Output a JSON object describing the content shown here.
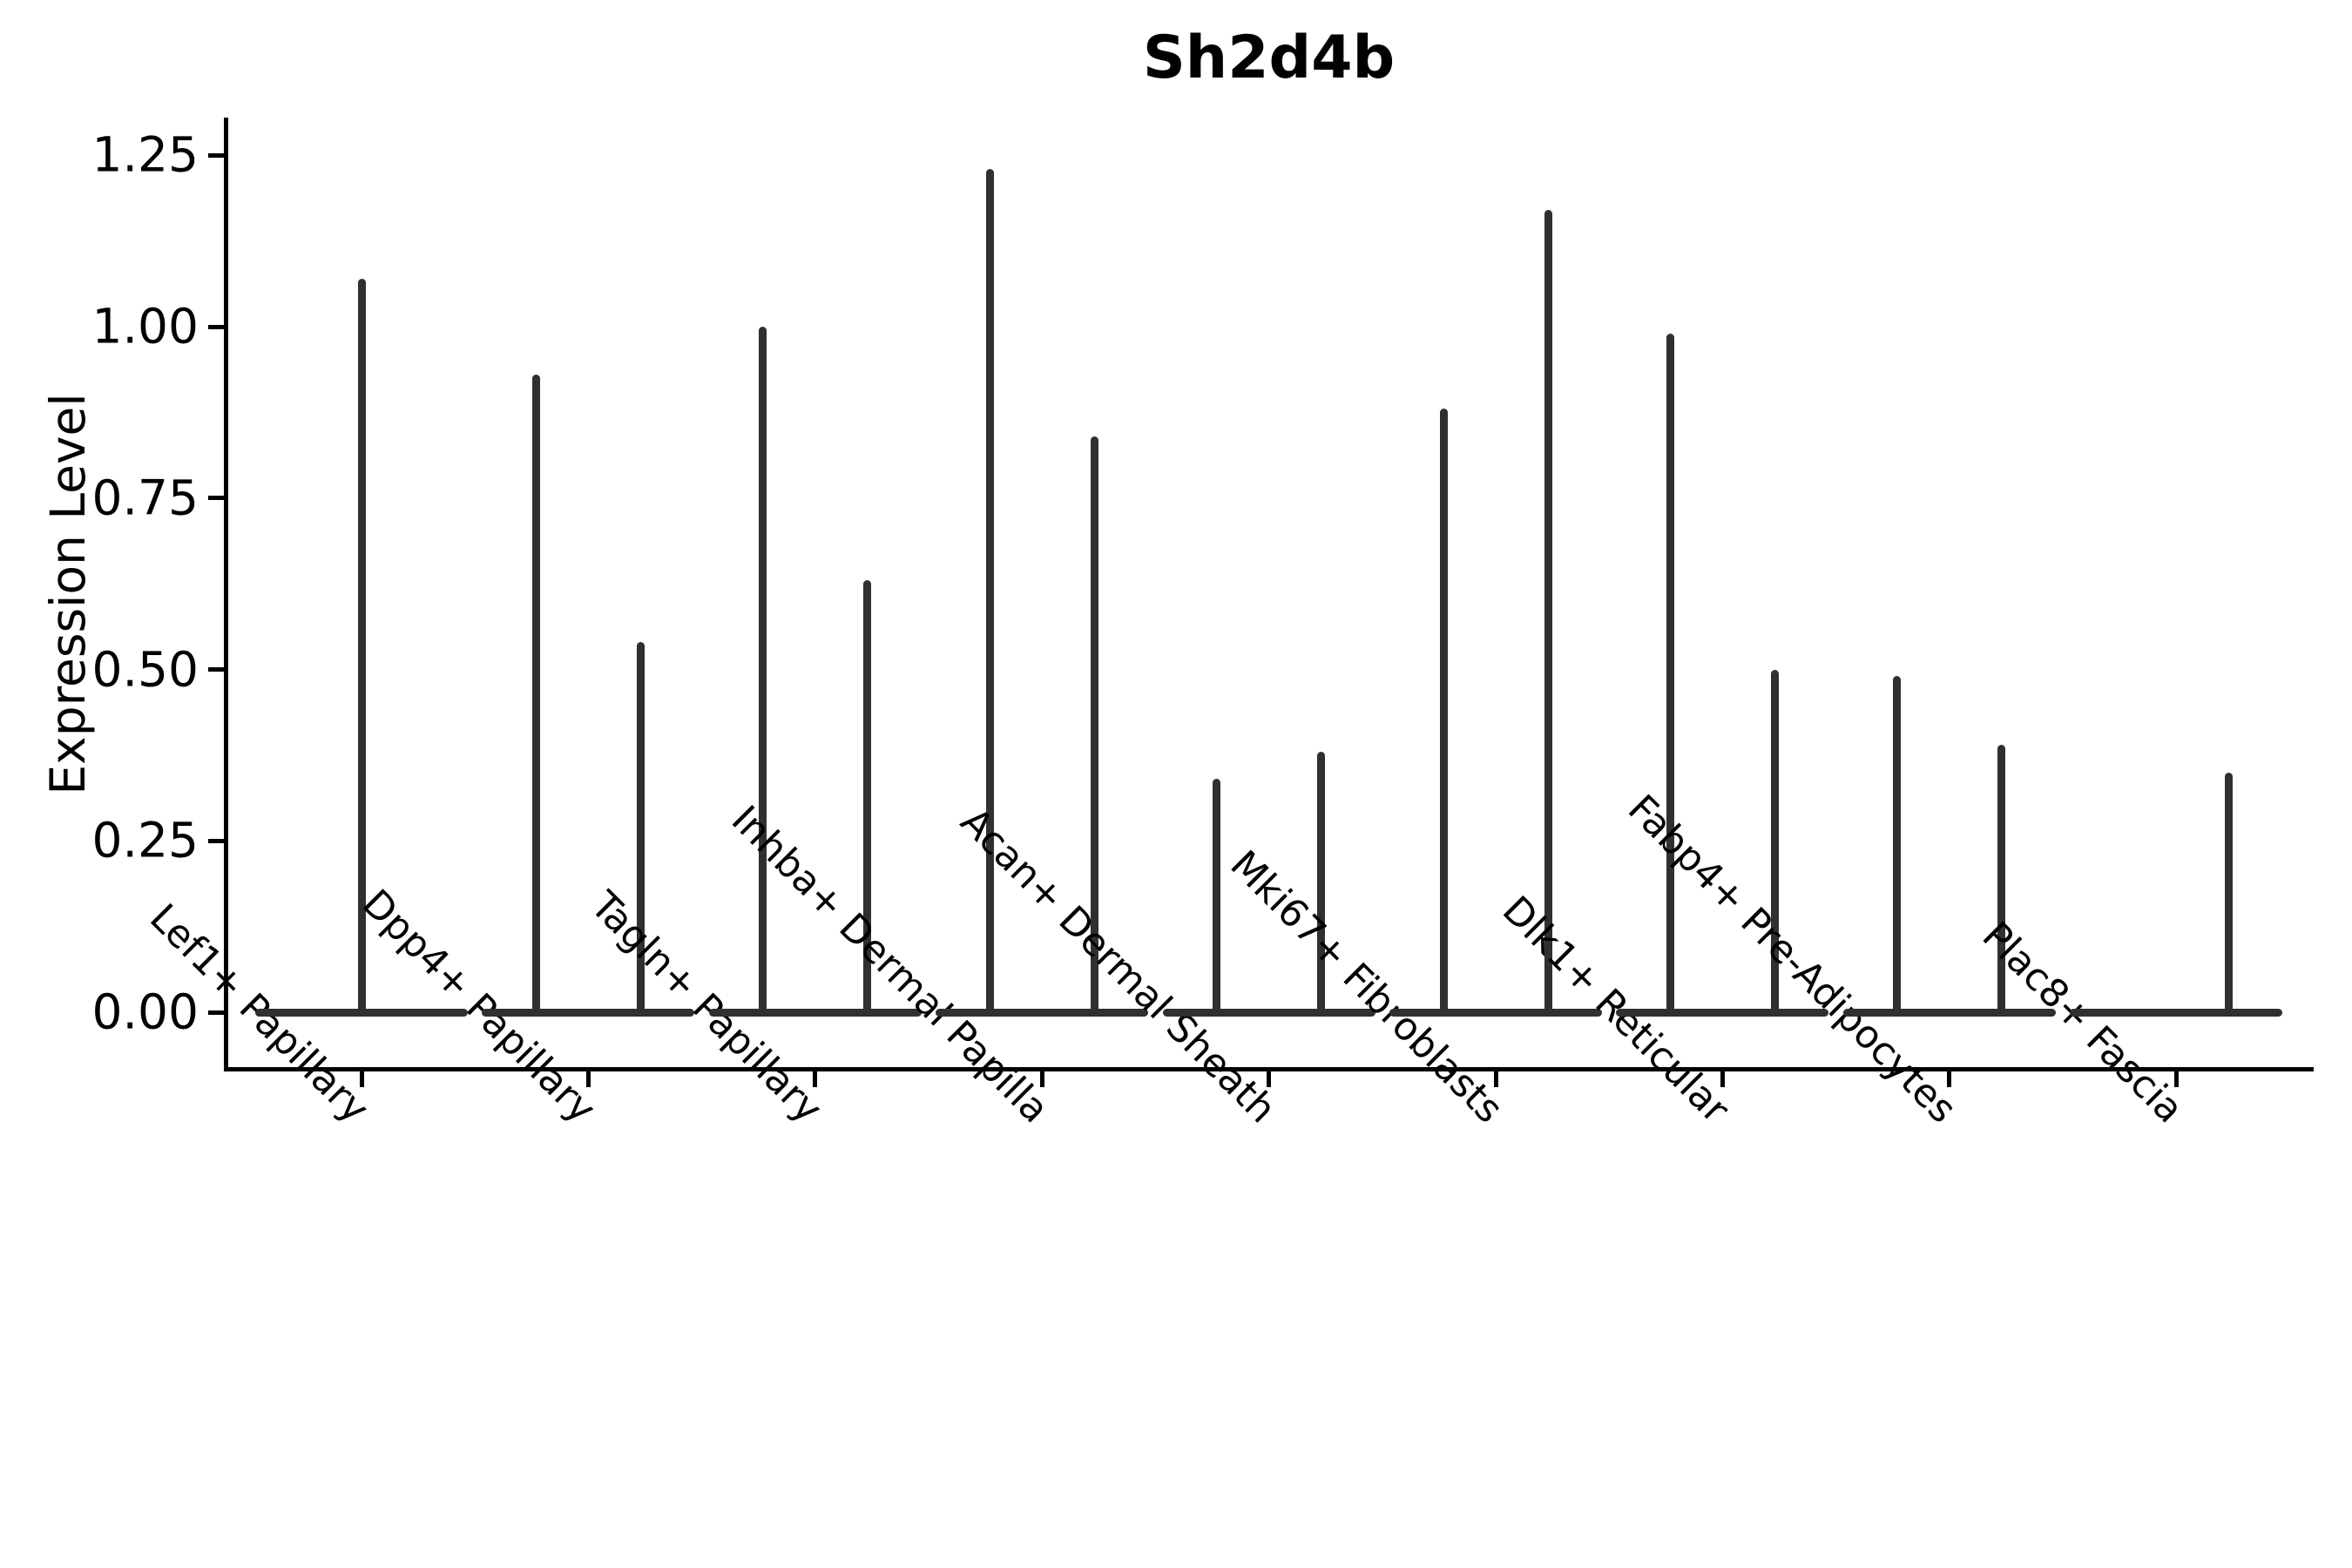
{
  "chart_data": {
    "type": "violin",
    "title": "Sh2d4b",
    "xlabel": "",
    "ylabel": "Expression Level",
    "yticks": [
      "0.00",
      "0.25",
      "0.50",
      "0.75",
      "1.00",
      "1.25"
    ],
    "ylim": [
      -0.08,
      1.31
    ],
    "grid": false,
    "legend": null,
    "violin_color": "#303030",
    "axis_color": "#000000",
    "categories": [
      {
        "label": "Lef1+ Papillary",
        "violins": [
          {
            "position": "center",
            "max": 1.07
          }
        ]
      },
      {
        "label": "Dpp4+ Papillary",
        "violins": [
          {
            "position": "left",
            "max": 0.93
          },
          {
            "position": "right",
            "max": 0.54
          }
        ]
      },
      {
        "label": "Tagln+ Papillary",
        "violins": [
          {
            "position": "left",
            "max": 1.0
          },
          {
            "position": "right",
            "max": 0.63
          }
        ]
      },
      {
        "label": "Inhba+ Dermal Papilla",
        "violins": [
          {
            "position": "left",
            "max": 1.23
          },
          {
            "position": "right",
            "max": 0.84
          }
        ]
      },
      {
        "label": "Acan+ Dermal Sheath",
        "violins": [
          {
            "position": "left",
            "max": 0.34
          },
          {
            "position": "right",
            "max": 0.38
          }
        ]
      },
      {
        "label": "Mki67+ Fibroblasts",
        "violins": [
          {
            "position": "left",
            "max": 0.88
          },
          {
            "position": "right",
            "max": 1.17
          }
        ]
      },
      {
        "label": "Dlk1+ Reticular",
        "violins": [
          {
            "position": "left",
            "max": 0.99
          },
          {
            "position": "right",
            "max": 0.5
          }
        ]
      },
      {
        "label": "Fabp4+ Pre-Adipocytes",
        "violins": [
          {
            "position": "left",
            "max": 0.49
          },
          {
            "position": "right",
            "max": 0.39
          }
        ]
      },
      {
        "label": "Plac8+ Fascia",
        "violins": [
          {
            "position": "right",
            "max": 0.35
          }
        ]
      }
    ]
  }
}
